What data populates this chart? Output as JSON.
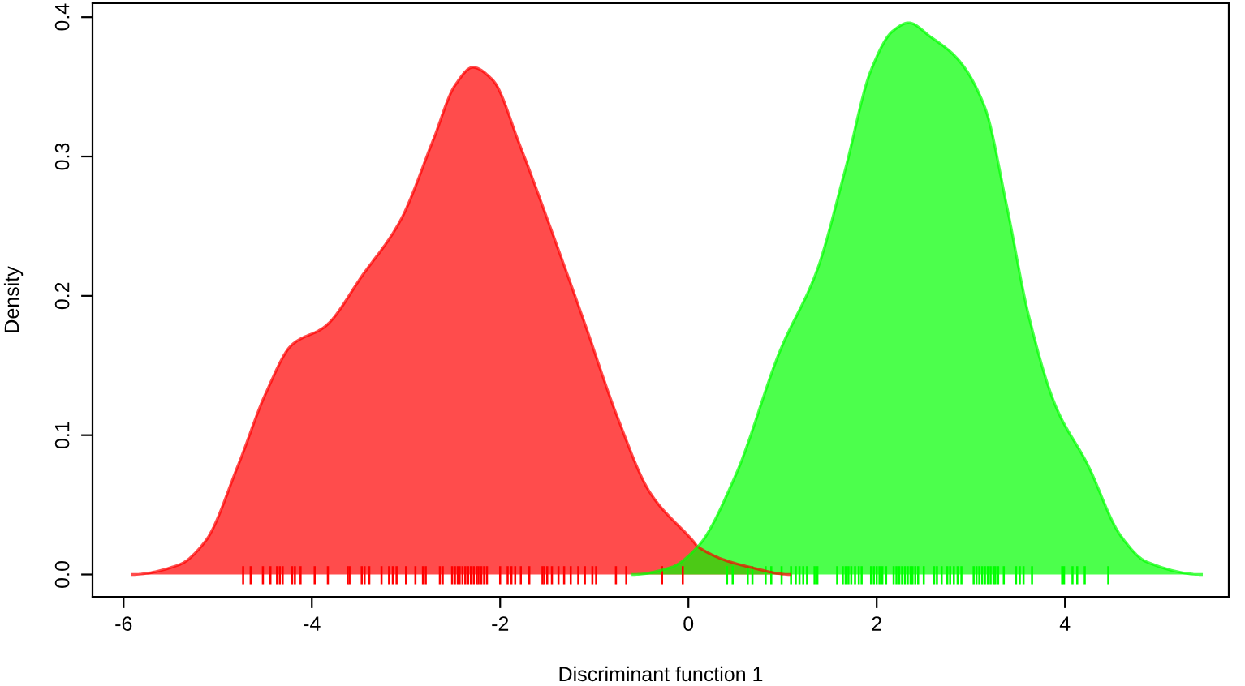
{
  "chart_data": {
    "type": "area",
    "xlabel": "Discriminant function 1",
    "ylabel": "Density",
    "xlim": [
      -6.33,
      5.74
    ],
    "ylim": [
      -0.016,
      0.41
    ],
    "xticks": [
      -6,
      -4,
      -2,
      0,
      2,
      4
    ],
    "yticks": [
      {
        "value": 0,
        "label": "0.0"
      },
      0.1,
      0.2,
      0.3,
      0.4
    ],
    "grid": false,
    "legend": false,
    "series": [
      {
        "color": "#ff0000",
        "x": [
          -5.91,
          -5.41,
          -5.13,
          -4.78,
          -4.49,
          -4.21,
          -3.86,
          -3.46,
          -3.06,
          -2.71,
          -2.48,
          -2.29,
          -2.08,
          -1.79,
          -1.45,
          -1.1,
          -0.76,
          -0.41,
          0.05,
          0.1,
          0.67,
          1.08
        ],
        "values": [
          0,
          0.007,
          0.024,
          0.079,
          0.13,
          0.165,
          0.178,
          0.215,
          0.254,
          0.312,
          0.351,
          0.364,
          0.355,
          0.308,
          0.246,
          0.18,
          0.114,
          0.059,
          0.024,
          0.02,
          0.005,
          0
        ]
      },
      {
        "color": "#00ff00",
        "x": [
          -0.59,
          -0.19,
          0.1,
          0.5,
          0.97,
          1.37,
          1.66,
          1.94,
          2.17,
          2.34,
          2.57,
          2.86,
          3.15,
          3.38,
          3.61,
          3.9,
          4.24,
          4.59,
          4.87,
          5.45
        ],
        "values": [
          0,
          0.005,
          0.02,
          0.071,
          0.16,
          0.219,
          0.289,
          0.362,
          0.39,
          0.396,
          0.386,
          0.37,
          0.335,
          0.265,
          0.187,
          0.121,
          0.079,
          0.028,
          0.009,
          0
        ]
      },
      {
        "type": "bar",
        "color": "#ff0000",
        "x": [
          -4.73,
          -4.65,
          -4.52,
          -4.44,
          -4.37,
          -4.34,
          -4.31,
          -4.21,
          -4.18,
          -4.12,
          -3.97,
          -3.83,
          -3.62,
          -3.6,
          -3.47,
          -3.44,
          -3.39,
          -3.26,
          -3.18,
          -3.14,
          -3.1,
          -3.0,
          -2.9,
          -2.82,
          -2.79,
          -2.64,
          -2.61,
          -2.51,
          -2.48,
          -2.45,
          -2.43,
          -2.4,
          -2.37,
          -2.34,
          -2.31,
          -2.28,
          -2.25,
          -2.23,
          -2.2,
          -2.17,
          -2.14,
          -2.0,
          -1.92,
          -1.88,
          -1.84,
          -1.78,
          -1.69,
          -1.55,
          -1.53,
          -1.5,
          -1.45,
          -1.38,
          -1.32,
          -1.25,
          -1.17,
          -1.1,
          -1.02,
          -0.98,
          -0.77,
          -0.66,
          -0.28,
          -0.06
        ],
        "base": [
          -0.007,
          -0.007,
          -0.007,
          -0.007,
          -0.007,
          -0.007,
          -0.007,
          -0.007,
          -0.007,
          -0.007,
          -0.007,
          -0.007,
          -0.007,
          -0.007,
          -0.007,
          -0.007,
          -0.007,
          -0.007,
          -0.007,
          -0.007,
          -0.007,
          -0.007,
          -0.007,
          -0.007,
          -0.007,
          -0.007,
          -0.007,
          -0.007,
          -0.007,
          -0.007,
          -0.007,
          -0.007,
          -0.007,
          -0.007,
          -0.007,
          -0.007,
          -0.007,
          -0.007,
          -0.007,
          -0.007,
          -0.007,
          -0.007,
          -0.007,
          -0.007,
          -0.007,
          -0.007,
          -0.007,
          -0.007,
          -0.007,
          -0.007,
          -0.007,
          -0.007,
          -0.007,
          -0.007,
          -0.007,
          -0.007,
          -0.007,
          -0.007,
          -0.007,
          -0.007,
          -0.007,
          -0.007
        ],
        "values": [
          0.013,
          0.013,
          0.013,
          0.013,
          0.013,
          0.013,
          0.013,
          0.013,
          0.013,
          0.013,
          0.013,
          0.013,
          0.013,
          0.013,
          0.013,
          0.013,
          0.013,
          0.013,
          0.013,
          0.013,
          0.013,
          0.013,
          0.013,
          0.013,
          0.013,
          0.013,
          0.013,
          0.013,
          0.013,
          0.013,
          0.013,
          0.013,
          0.013,
          0.013,
          0.013,
          0.013,
          0.013,
          0.013,
          0.013,
          0.013,
          0.013,
          0.013,
          0.013,
          0.013,
          0.013,
          0.013,
          0.013,
          0.013,
          0.013,
          0.013,
          0.013,
          0.013,
          0.013,
          0.013,
          0.013,
          0.013,
          0.013,
          0.013,
          0.013,
          0.013,
          0.013,
          0.013
        ]
      },
      {
        "type": "bar",
        "color": "#00ff00",
        "x": [
          0.41,
          0.47,
          0.63,
          0.68,
          0.82,
          0.88,
          0.99,
          1.09,
          1.14,
          1.18,
          1.22,
          1.26,
          1.34,
          1.37,
          1.58,
          1.64,
          1.67,
          1.7,
          1.73,
          1.77,
          1.81,
          1.84,
          1.94,
          1.97,
          2.0,
          2.03,
          2.06,
          2.1,
          2.18,
          2.21,
          2.24,
          2.27,
          2.3,
          2.33,
          2.36,
          2.38,
          2.41,
          2.44,
          2.5,
          2.61,
          2.64,
          2.69,
          2.75,
          2.78,
          2.82,
          2.86,
          2.9,
          3.03,
          3.06,
          3.09,
          3.12,
          3.15,
          3.18,
          3.21,
          3.24,
          3.26,
          3.29,
          3.35,
          3.48,
          3.52,
          3.56,
          3.65,
          3.97,
          3.99,
          4.08,
          4.13,
          4.21,
          4.46
        ],
        "base": [
          -0.007,
          -0.007,
          -0.007,
          -0.007,
          -0.007,
          -0.007,
          -0.007,
          -0.007,
          -0.007,
          -0.007,
          -0.007,
          -0.007,
          -0.007,
          -0.007,
          -0.007,
          -0.007,
          -0.007,
          -0.007,
          -0.007,
          -0.007,
          -0.007,
          -0.007,
          -0.007,
          -0.007,
          -0.007,
          -0.007,
          -0.007,
          -0.007,
          -0.007,
          -0.007,
          -0.007,
          -0.007,
          -0.007,
          -0.007,
          -0.007,
          -0.007,
          -0.007,
          -0.007,
          -0.007,
          -0.007,
          -0.007,
          -0.007,
          -0.007,
          -0.007,
          -0.007,
          -0.007,
          -0.007,
          -0.007,
          -0.007,
          -0.007,
          -0.007,
          -0.007,
          -0.007,
          -0.007,
          -0.007,
          -0.007,
          -0.007,
          -0.007,
          -0.007,
          -0.007,
          -0.007,
          -0.007,
          -0.007,
          -0.007,
          -0.007,
          -0.007,
          -0.007,
          -0.007
        ],
        "values": [
          0.013,
          0.013,
          0.013,
          0.013,
          0.013,
          0.013,
          0.013,
          0.013,
          0.013,
          0.013,
          0.013,
          0.013,
          0.013,
          0.013,
          0.013,
          0.013,
          0.013,
          0.013,
          0.013,
          0.013,
          0.013,
          0.013,
          0.013,
          0.013,
          0.013,
          0.013,
          0.013,
          0.013,
          0.013,
          0.013,
          0.013,
          0.013,
          0.013,
          0.013,
          0.013,
          0.013,
          0.013,
          0.013,
          0.013,
          0.013,
          0.013,
          0.013,
          0.013,
          0.013,
          0.013,
          0.013,
          0.013,
          0.013,
          0.013,
          0.013,
          0.013,
          0.013,
          0.013,
          0.013,
          0.013,
          0.013,
          0.013,
          0.013,
          0.013,
          0.013,
          0.013,
          0.013,
          0.013,
          0.013,
          0.013,
          0.013,
          0.013,
          0.013
        ]
      }
    ]
  }
}
